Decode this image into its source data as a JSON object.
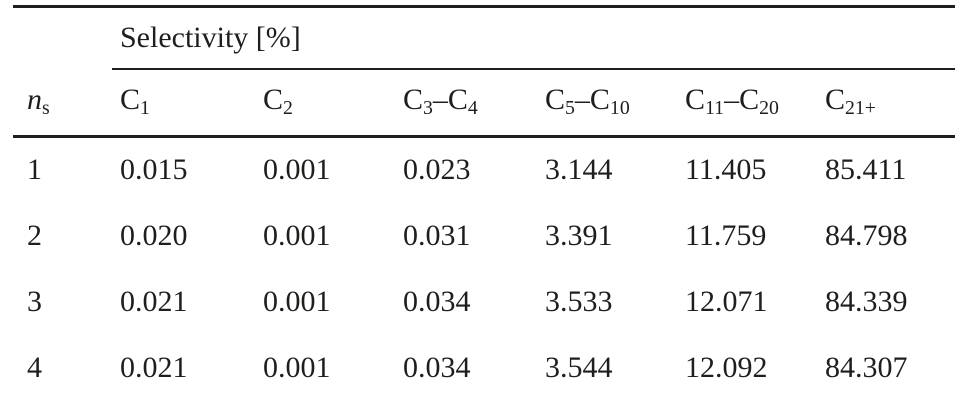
{
  "table": {
    "spanning_header": "Selectivity [%]",
    "row_header": {
      "parts": [
        {
          "text": "n",
          "style": "italic"
        },
        {
          "text": "s",
          "style": "sub"
        }
      ]
    },
    "columns": [
      {
        "parts": [
          {
            "text": "C"
          },
          {
            "text": "1",
            "style": "sub"
          }
        ]
      },
      {
        "parts": [
          {
            "text": "C"
          },
          {
            "text": "2",
            "style": "sub"
          }
        ]
      },
      {
        "parts": [
          {
            "text": "C"
          },
          {
            "text": "3",
            "style": "sub"
          },
          {
            "text": "–"
          },
          {
            "text": "C"
          },
          {
            "text": "4",
            "style": "sub"
          }
        ]
      },
      {
        "parts": [
          {
            "text": "C"
          },
          {
            "text": "5",
            "style": "sub"
          },
          {
            "text": "–"
          },
          {
            "text": "C"
          },
          {
            "text": "10",
            "style": "sub"
          }
        ]
      },
      {
        "parts": [
          {
            "text": "C"
          },
          {
            "text": "11",
            "style": "sub"
          },
          {
            "text": "–"
          },
          {
            "text": "C"
          },
          {
            "text": "20",
            "style": "sub"
          }
        ]
      },
      {
        "parts": [
          {
            "text": "C"
          },
          {
            "text": "21+",
            "style": "sub"
          }
        ]
      }
    ],
    "rows": [
      {
        "ns": "1",
        "values": [
          "0.015",
          "0.001",
          "0.023",
          "3.144",
          "11.405",
          "85.411"
        ]
      },
      {
        "ns": "2",
        "values": [
          "0.020",
          "0.001",
          "0.031",
          "3.391",
          "11.759",
          "84.798"
        ]
      },
      {
        "ns": "3",
        "values": [
          "0.021",
          "0.001",
          "0.034",
          "3.533",
          "12.071",
          "84.339"
        ]
      },
      {
        "ns": "4",
        "values": [
          "0.021",
          "0.001",
          "0.034",
          "3.544",
          "12.092",
          "84.307"
        ]
      }
    ]
  },
  "colors": {
    "text": "#1e1e1c",
    "rule": "#1e1e1c",
    "background": "#ffffff"
  },
  "chart_data": {
    "type": "table",
    "title": "Selectivity [%]",
    "columns": [
      "n_s",
      "C1",
      "C2",
      "C3–C4",
      "C5–C10",
      "C11–C20",
      "C21+"
    ],
    "rows": [
      [
        1,
        0.015,
        0.001,
        0.023,
        3.144,
        11.405,
        85.411
      ],
      [
        2,
        0.02,
        0.001,
        0.031,
        3.391,
        11.759,
        84.798
      ],
      [
        3,
        0.021,
        0.001,
        0.034,
        3.533,
        12.071,
        84.339
      ],
      [
        4,
        0.021,
        0.001,
        0.034,
        3.544,
        12.092,
        84.307
      ]
    ]
  }
}
